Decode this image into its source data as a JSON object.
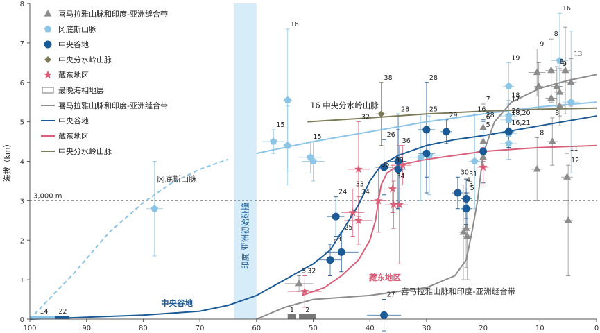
{
  "chart_data": {
    "type": "scatter",
    "xlim": [
      100,
      0
    ],
    "ylim": [
      0,
      8
    ],
    "x_ticks": [
      "100",
      "90",
      "80",
      "70",
      "60",
      "50",
      "40",
      "30",
      "20",
      "10",
      "0"
    ],
    "y_ticks": [
      "0",
      "1",
      "2",
      "3",
      "4",
      "5",
      "6",
      "7",
      "8"
    ],
    "ylabel": "海拔（km）",
    "reference_line": {
      "y": 3,
      "label": "3,000 m"
    },
    "collision_band": {
      "x": [
        64,
        60
      ],
      "label": "印度-亚洲初始碰撞"
    },
    "marine_strata_label": "最晚海相地层",
    "marine_strata": [
      {
        "id": "1",
        "x": [
          54.5,
          53
        ]
      },
      {
        "id": "2",
        "x": [
          52.5,
          49.5
        ]
      }
    ],
    "legend": [
      {
        "kind": "triangle",
        "label": "喜马拉雅山脉和印度-亚洲缝合带",
        "color": "#8c8c8c"
      },
      {
        "kind": "pentagon",
        "label": "冈底斯山脉",
        "color": "#8cc4e6"
      },
      {
        "kind": "circle",
        "label": "中央谷地",
        "color": "#1a5a96"
      },
      {
        "kind": "diamond",
        "label": "中央分水岭山脉",
        "color": "#7d7a5a"
      },
      {
        "kind": "star",
        "label": "藏东地区",
        "color": "#d9607a"
      },
      {
        "kind": "rect",
        "label": "最晚海相地层",
        "color": "#777777"
      },
      {
        "kind": "line",
        "label": "喜马拉雅山脉和印度-亚洲缝合带",
        "color": "#8c8c8c"
      },
      {
        "kind": "line",
        "label": "中央谷地",
        "color": "#1a5a96"
      },
      {
        "kind": "line",
        "label": "藏东地区",
        "color": "#d9607a"
      },
      {
        "kind": "line",
        "label": "中央分水岭山脉",
        "color": "#7d7a5a"
      }
    ],
    "region_labels": [
      {
        "text": "冈底斯山脉",
        "color": "#333333"
      },
      {
        "text": "16 中央分水岭山脉",
        "color": "#222222"
      },
      {
        "text": "中央谷地",
        "color": "#1a5a96"
      },
      {
        "text": "藏东地区",
        "color": "#d9607a"
      },
      {
        "text": "喜马拉雅山脉和印度-亚洲缝合带",
        "color": "#333333"
      }
    ],
    "series": [
      {
        "name": "喜马拉雅山脉和印度-亚洲缝合带",
        "marker": "triangle",
        "color": "#8c8c8c",
        "points": [
          {
            "x": 52.5,
            "y": 0.9,
            "xerr": 2.5,
            "yerr": 0.2,
            "label": "3"
          },
          {
            "x": 23.5,
            "y": 2.2,
            "xerr": 0.8,
            "yerr": 1.2,
            "label": "4"
          },
          {
            "x": 23.0,
            "y": 2.3,
            "xerr": 0.8,
            "yerr": 1.0,
            "label": "3"
          },
          {
            "x": 22.8,
            "y": 2.1,
            "xerr": 0.8,
            "yerr": 1.1,
            "label": "5"
          },
          {
            "x": 20.0,
            "y": 4.85,
            "xerr": 0.5,
            "yerr": 0.6,
            "label": "7"
          },
          {
            "x": 20.0,
            "y": 4.5,
            "xerr": 0.5,
            "yerr": 0.5,
            "label": "6"
          },
          {
            "x": 20.0,
            "y": 4.1,
            "xerr": 0.5,
            "yerr": 0.7,
            "label": "5"
          },
          {
            "x": 10.5,
            "y": 6.25,
            "xerr": 1.5,
            "yerr": 0.6,
            "label": "9"
          },
          {
            "x": 10.5,
            "y": 3.8,
            "xerr": 1.0,
            "yerr": 0.8,
            "label": "8"
          },
          {
            "x": 10.2,
            "y": 5.9,
            "xerr": 0.8,
            "yerr": 0.6,
            "label": ""
          },
          {
            "x": 8.0,
            "y": 6.3,
            "xerr": 1.0,
            "yerr": 0.8,
            "label": "8"
          },
          {
            "x": 8.0,
            "y": 5.6,
            "xerr": 1.0,
            "yerr": 0.7,
            "label": ""
          },
          {
            "x": 7.8,
            "y": 4.5,
            "xerr": 1.0,
            "yerr": 0.6,
            "label": "8"
          },
          {
            "x": 7.0,
            "y": 5.9,
            "xerr": 1.0,
            "yerr": 0.5,
            "label": "8"
          },
          {
            "x": 6.5,
            "y": 5.75,
            "xerr": 1.0,
            "yerr": 0.6,
            "label": "9"
          },
          {
            "x": 6.5,
            "y": 5.4,
            "xerr": 1.0,
            "yerr": 0.5,
            "label": ""
          },
          {
            "x": 5.5,
            "y": 6.3,
            "xerr": 1.0,
            "yerr": 1.1,
            "label": ""
          },
          {
            "x": 5.2,
            "y": 3.6,
            "xerr": 1.0,
            "yerr": 0.6,
            "label": "11"
          },
          {
            "x": 4.5,
            "y": 6.0,
            "xerr": 1.0,
            "yerr": 0.6,
            "label": "13"
          },
          {
            "x": 5.0,
            "y": 2.5,
            "xerr": 0.8,
            "yerr": 1.4,
            "label": "12"
          }
        ]
      },
      {
        "name": "冈底斯山脉",
        "marker": "pentagon",
        "color": "#8cc4e6",
        "points": [
          {
            "x": 78.0,
            "y": 2.8,
            "xerr": 1.5,
            "yerr": 1.2,
            "label": ""
          },
          {
            "x": 57.0,
            "y": 4.5,
            "xerr": 2.0,
            "yerr": 0.3,
            "label": "15"
          },
          {
            "x": 54.5,
            "y": 5.55,
            "xerr": 0.8,
            "yerr": 1.8,
            "label": "16"
          },
          {
            "x": 54.5,
            "y": 4.4,
            "xerr": 0.8,
            "yerr": 1.0,
            "label": ""
          },
          {
            "x": 50.5,
            "y": 4.1,
            "xerr": 2.0,
            "yerr": 0.4,
            "label": "15"
          },
          {
            "x": 50.0,
            "y": 4.0,
            "xerr": 2.0,
            "yerr": 0.5,
            "label": ""
          },
          {
            "x": 31.0,
            "y": 4.1,
            "xerr": 2.0,
            "yerr": 1.1,
            "label": ""
          },
          {
            "x": 29.5,
            "y": 4.15,
            "xerr": 2.0,
            "yerr": 1.0,
            "label": ""
          },
          {
            "x": 21.5,
            "y": 4.0,
            "xerr": 1.0,
            "yerr": 1.2,
            "label": "16"
          },
          {
            "x": 15.5,
            "y": 5.9,
            "xerr": 1.0,
            "yerr": 0.6,
            "label": "19"
          },
          {
            "x": 15.5,
            "y": 5.15,
            "xerr": 1.5,
            "yerr": 0.4,
            "label": "18"
          },
          {
            "x": 15.5,
            "y": 5.05,
            "xerr": 1.5,
            "yerr": 0.4,
            "label": "17"
          },
          {
            "x": 15.5,
            "y": 4.7,
            "xerr": 1.5,
            "yerr": 0.4,
            "label": "18,20"
          },
          {
            "x": 15.5,
            "y": 4.45,
            "xerr": 1.5,
            "yerr": 0.4,
            "label": "16,21"
          },
          {
            "x": 6.5,
            "y": 6.55,
            "xerr": 1.5,
            "yerr": 1.2,
            "label": "16"
          },
          {
            "x": 4.5,
            "y": 5.5,
            "xerr": 1.5,
            "yerr": 1.8,
            "label": ""
          }
        ]
      },
      {
        "name": "中央谷地",
        "marker": "circle",
        "color": "#1a5a96",
        "points": [
          {
            "x": 47.0,
            "y": 1.5,
            "xerr": 2.0,
            "yerr": 0.4,
            "label": "23"
          },
          {
            "x": 46.0,
            "y": 2.6,
            "xerr": 1.5,
            "yerr": 0.5,
            "label": "24"
          },
          {
            "x": 45.0,
            "y": 1.7,
            "xerr": 3.0,
            "yerr": 0.5,
            "label": "25"
          },
          {
            "x": 37.5,
            "y": 0.1,
            "xerr": 3.0,
            "yerr": 0.4,
            "label": "27"
          },
          {
            "x": 37.5,
            "y": 3.85,
            "xerr": 1.5,
            "yerr": 0.7,
            "label": "26"
          },
          {
            "x": 35.0,
            "y": 4.0,
            "xerr": 1.5,
            "yerr": 1.2,
            "label": "28"
          },
          {
            "x": 35.0,
            "y": 3.8,
            "xerr": 1.5,
            "yerr": 1.0,
            "label": ""
          },
          {
            "x": 30.0,
            "y": 4.8,
            "xerr": 1.5,
            "yerr": 1.2,
            "label": "28"
          },
          {
            "x": 30.0,
            "y": 4.2,
            "xerr": 1.5,
            "yerr": 1.0,
            "label": "25"
          },
          {
            "x": 26.5,
            "y": 4.75,
            "xerr": 1.0,
            "yerr": 0.3,
            "label": "29"
          },
          {
            "x": 24.5,
            "y": 3.2,
            "xerr": 1.0,
            "yerr": 0.4,
            "label": "30"
          },
          {
            "x": 23.0,
            "y": 3.05,
            "xerr": 1.0,
            "yerr": 0.5,
            "label": "31"
          },
          {
            "x": 23.0,
            "y": 2.8,
            "xerr": 1.0,
            "yerr": 0.4,
            "label": ""
          },
          {
            "x": 20.0,
            "y": 4.25,
            "xerr": 1.0,
            "yerr": 0.8,
            "label": "28"
          },
          {
            "x": 15.5,
            "y": 4.75,
            "xerr": 1.0,
            "yerr": 0.4,
            "label": "26"
          }
        ]
      },
      {
        "name": "中央分水岭山脉",
        "marker": "diamond",
        "color": "#7d7a5a",
        "points": [
          {
            "x": 38.0,
            "y": 5.2,
            "xerr": 1.0,
            "yerr": 0.8,
            "label": "38"
          }
        ]
      },
      {
        "name": "藏东地区",
        "marker": "star",
        "color": "#d9607a",
        "points": [
          {
            "x": 51.5,
            "y": 0.7,
            "xerr": 3.0,
            "yerr": 0.4,
            "label": "32"
          },
          {
            "x": 43.0,
            "y": 2.7,
            "xerr": 2.0,
            "yerr": 0.6,
            "label": "33"
          },
          {
            "x": 42.0,
            "y": 3.8,
            "xerr": 2.0,
            "yerr": 1.2,
            "label": "32"
          },
          {
            "x": 42.0,
            "y": 2.5,
            "xerr": 2.5,
            "yerr": 0.6,
            "label": "34"
          },
          {
            "x": 38.5,
            "y": 3.0,
            "xerr": 1.5,
            "yerr": 0.8,
            "label": "35"
          },
          {
            "x": 36.0,
            "y": 3.3,
            "xerr": 1.5,
            "yerr": 0.6,
            "label": "33"
          },
          {
            "x": 35.8,
            "y": 2.9,
            "xerr": 1.5,
            "yerr": 0.6,
            "label": "34"
          },
          {
            "x": 34.8,
            "y": 2.9,
            "xerr": 1.5,
            "yerr": 1.5,
            "label": "36"
          },
          {
            "x": 34.2,
            "y": 3.9,
            "xerr": 1.5,
            "yerr": 0.5,
            "label": ""
          },
          {
            "x": 20.0,
            "y": 3.85,
            "xerr": 1.0,
            "yerr": 0.5,
            "label": ""
          }
        ]
      }
    ],
    "trends": [
      {
        "name": "冈底斯山脉",
        "color": "#8cc4e6",
        "dashed_until_x": 62,
        "points": [
          [
            100,
            0
          ],
          [
            92,
            1.2
          ],
          [
            86,
            2.2
          ],
          [
            80,
            2.95
          ],
          [
            75,
            3.45
          ],
          [
            70,
            3.8
          ],
          [
            65,
            4.05
          ],
          [
            60,
            4.2
          ],
          [
            50,
            4.5
          ],
          [
            40,
            4.75
          ],
          [
            30,
            5.0
          ],
          [
            20,
            5.2
          ],
          [
            10,
            5.38
          ],
          [
            0,
            5.5
          ]
        ]
      },
      {
        "name": "中央分水岭山脉",
        "color": "#7d7a5a",
        "dashed_until_x": null,
        "points": [
          [
            51,
            5.0
          ],
          [
            40,
            5.1
          ],
          [
            30,
            5.2
          ],
          [
            20,
            5.27
          ],
          [
            10,
            5.32
          ],
          [
            0,
            5.35
          ]
        ]
      },
      {
        "name": "中央谷地",
        "color": "#1a5a96",
        "dashed_until_x": null,
        "points": [
          [
            100,
            0
          ],
          [
            95,
            0.02
          ],
          [
            90,
            0.05
          ],
          [
            80,
            0.1
          ],
          [
            70,
            0.2
          ],
          [
            65,
            0.35
          ],
          [
            60,
            0.6
          ],
          [
            55,
            1.0
          ],
          [
            50,
            1.4
          ],
          [
            47,
            1.75
          ],
          [
            45,
            2.2
          ],
          [
            42,
            2.9
          ],
          [
            40,
            3.5
          ],
          [
            38,
            3.9
          ],
          [
            35,
            4.15
          ],
          [
            30,
            4.4
          ],
          [
            25,
            4.55
          ],
          [
            20,
            4.65
          ],
          [
            10,
            4.9
          ],
          [
            0,
            5.15
          ]
        ]
      },
      {
        "name": "藏东地区",
        "color": "#d9607a",
        "dashed_until_x": null,
        "points": [
          [
            52,
            0.6
          ],
          [
            48,
            0.8
          ],
          [
            45,
            1.1
          ],
          [
            42,
            1.5
          ],
          [
            40,
            2.0
          ],
          [
            39,
            2.5
          ],
          [
            38.5,
            3.0
          ],
          [
            38,
            3.4
          ],
          [
            37,
            3.7
          ],
          [
            35,
            3.9
          ],
          [
            30,
            4.05
          ],
          [
            25,
            4.15
          ],
          [
            20,
            4.25
          ],
          [
            10,
            4.35
          ],
          [
            0,
            4.4
          ]
        ]
      },
      {
        "name": "喜马拉雅山脉和印度-亚洲缝合带",
        "color": "#8c8c8c",
        "dashed_until_x": null,
        "points": [
          [
            60,
            0
          ],
          [
            55,
            0.3
          ],
          [
            50,
            0.5
          ],
          [
            40,
            0.6
          ],
          [
            30,
            0.8
          ],
          [
            25,
            1.1
          ],
          [
            23,
            1.5
          ],
          [
            22,
            2.2
          ],
          [
            21,
            3.0
          ],
          [
            20,
            4.2
          ],
          [
            18,
            5.0
          ],
          [
            15,
            5.5
          ],
          [
            10,
            5.85
          ],
          [
            5,
            6.05
          ],
          [
            0,
            6.2
          ]
        ]
      }
    ]
  }
}
